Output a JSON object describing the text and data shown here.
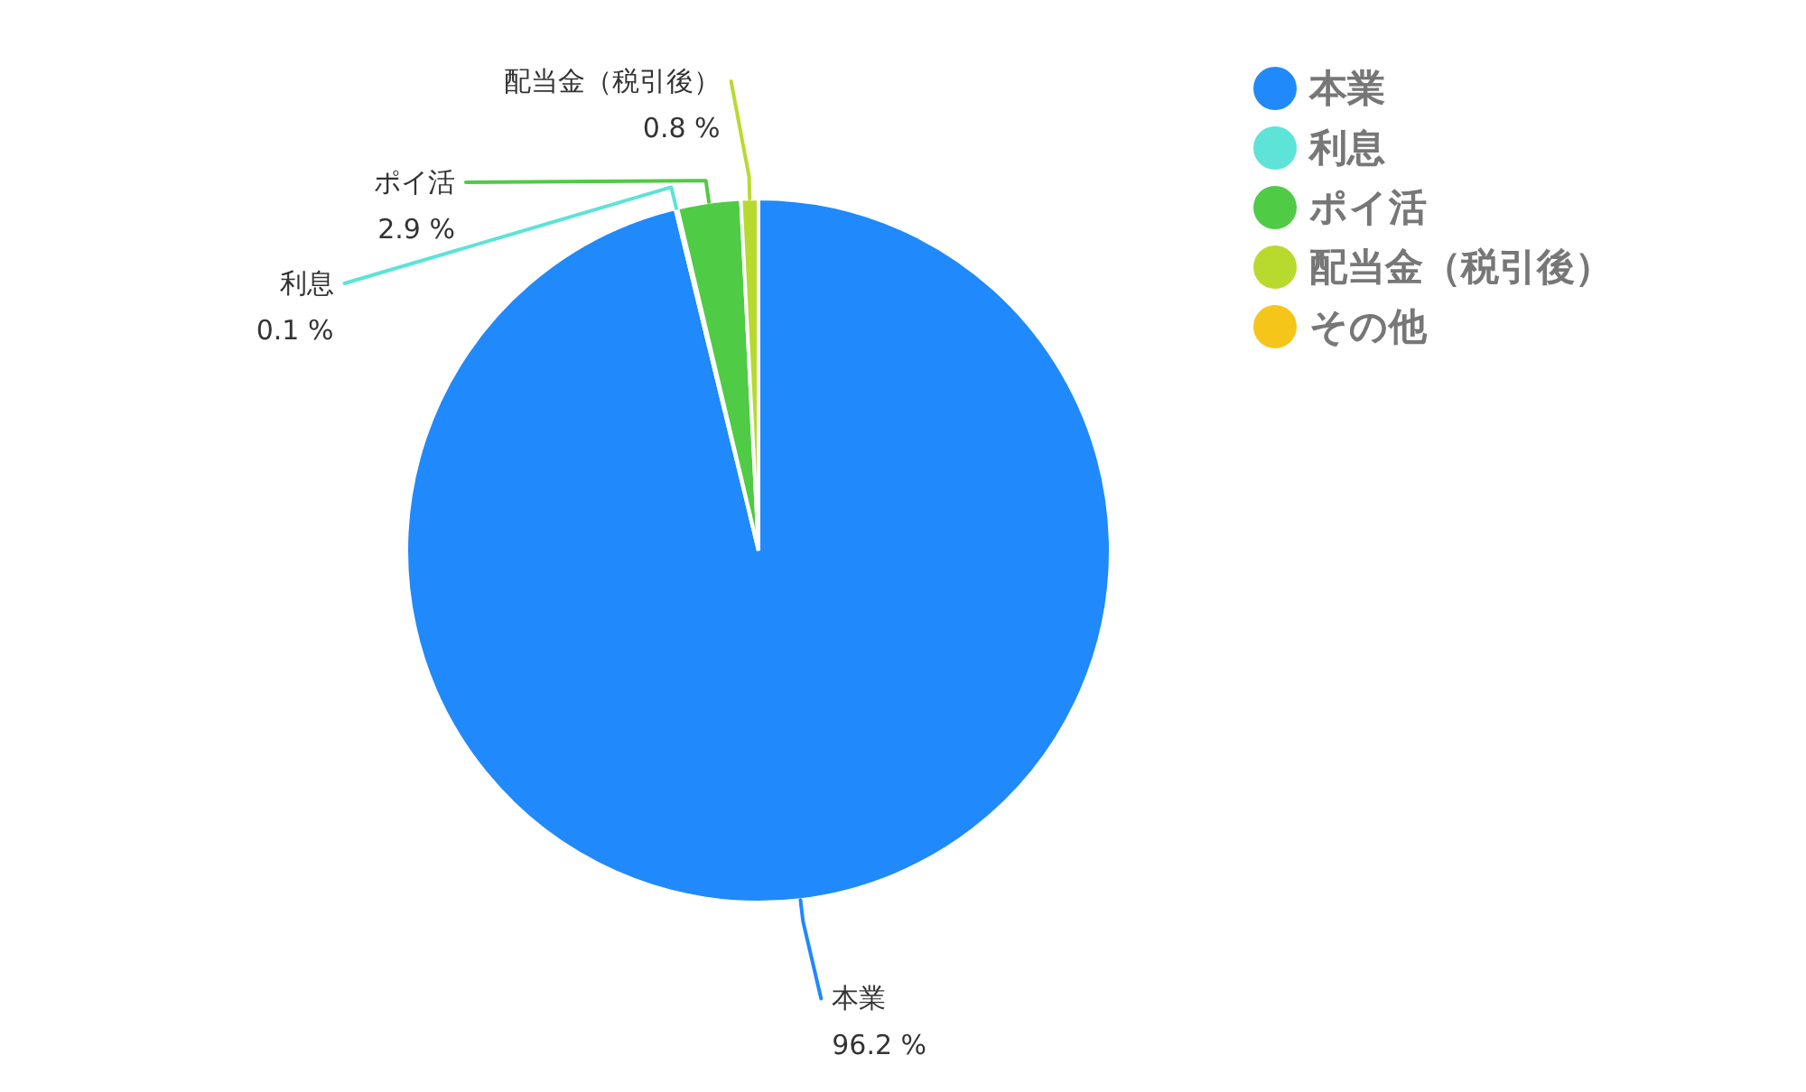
{
  "chart_data": {
    "type": "pie",
    "categories": [
      "本業",
      "利息",
      "ポイ活",
      "配当金（税引後）",
      "その他"
    ],
    "values": [
      96.2,
      0.1,
      2.9,
      0.8,
      0
    ],
    "colors": [
      "#2089fb",
      "#5de3d8",
      "#4fcb45",
      "#b8da2f",
      "#f6c51a"
    ],
    "value_labels": [
      "96.2 %",
      "0.1 %",
      "2.9 %",
      "0.8 %",
      null
    ],
    "legend": "top right"
  }
}
